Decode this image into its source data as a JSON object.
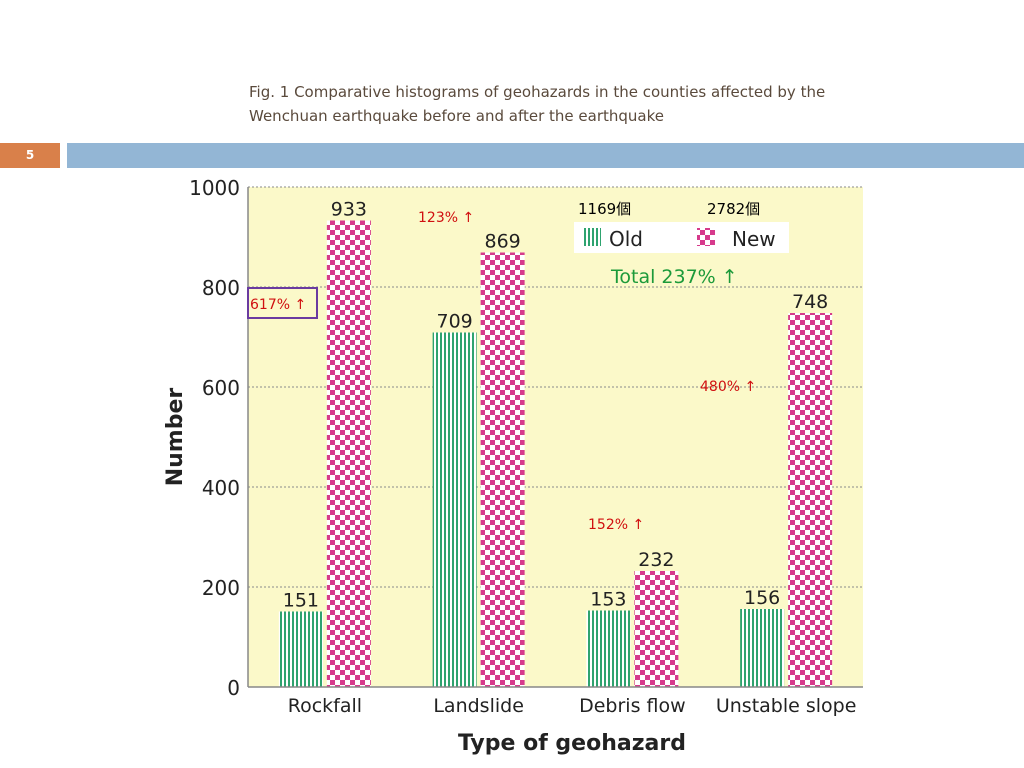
{
  "slide": {
    "number": "5",
    "caption_line1": "Fig. 1 Comparative histograms of geohazards in the counties affected by the",
    "caption_line2": "Wenchuan earthquake before and after the earthquake",
    "colors": {
      "accent_orange": "#d9804a",
      "band_blue": "#93b6d5",
      "caption": "#5a4a3c"
    }
  },
  "chart_data": {
    "type": "bar",
    "title": "",
    "xlabel": "Type of geohazard",
    "ylabel": "Number",
    "ylim": [
      0,
      1000
    ],
    "yticks": [
      0,
      200,
      400,
      600,
      800,
      1000
    ],
    "grid": true,
    "categories": [
      "Rockfall",
      "Landslide",
      "Debris flow",
      "Unstable slope"
    ],
    "series": [
      {
        "name": "Old",
        "values": [
          151,
          709,
          153,
          156
        ],
        "color": "#2ea36f",
        "pattern": "vertical-stripes"
      },
      {
        "name": "New",
        "values": [
          933,
          869,
          232,
          748
        ],
        "color": "#d63a8c",
        "pattern": "checkerboard"
      }
    ],
    "data_labels": [
      "151",
      "709",
      "153",
      "156",
      "933",
      "869",
      "232",
      "748"
    ],
    "legend": {
      "placement": "top-right",
      "old_total": "1169個",
      "new_total": "2782個"
    },
    "annotations": {
      "total": "Total 237% ↑",
      "rockfall": "617% ↑",
      "landslide": "123% ↑",
      "debris": "152% ↑",
      "unstable": "480% ↑"
    },
    "colors": {
      "plot_bg": "#fbf9c9",
      "annotation_red": "#d01010",
      "annotation_green": "#1c9a3a",
      "annotation_box": "#6a3ba0"
    }
  }
}
